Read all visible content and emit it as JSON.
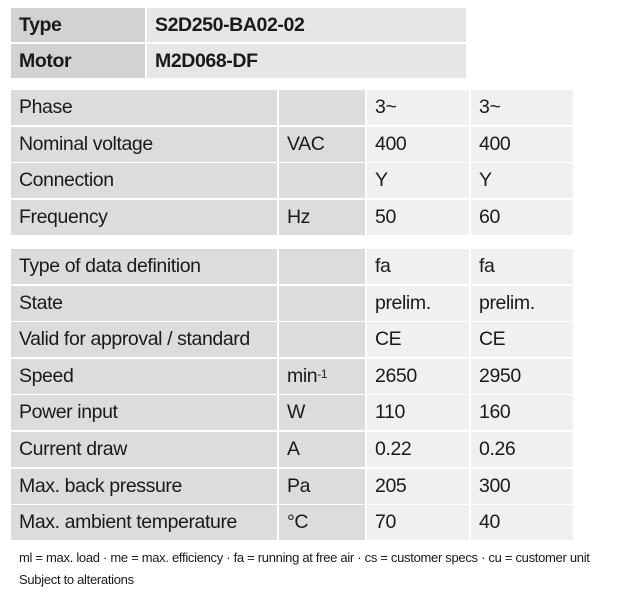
{
  "header": {
    "rows": [
      [
        "Type",
        "S2D250-BA02-02"
      ],
      [
        "Motor",
        "M2D068-DF"
      ]
    ]
  },
  "table1": {
    "rows": [
      [
        "Phase",
        null,
        "3~",
        "3~"
      ],
      [
        "Nominal voltage",
        "VAC",
        "400",
        "400"
      ],
      [
        "Connection",
        null,
        "Y",
        "Y"
      ],
      [
        "Frequency",
        "Hz",
        "50",
        "60"
      ]
    ]
  },
  "table2": {
    "rows": [
      [
        "Type of data definition",
        null,
        "fa",
        "fa"
      ],
      [
        "State",
        null,
        "prelim.",
        "prelim."
      ],
      [
        "Valid for approval / standard",
        null,
        "CE",
        "CE"
      ],
      [
        "Speed",
        {
          "text": "min",
          "sup": "-1"
        },
        "2650",
        "2950"
      ],
      [
        "Power input",
        "W",
        "110",
        "160"
      ],
      [
        "Current draw",
        "A",
        "0.22",
        "0.26"
      ],
      [
        "Max. back pressure",
        "Pa",
        "205",
        "300"
      ],
      [
        "Max. ambient temperature",
        "°C",
        "70",
        "40"
      ]
    ]
  },
  "footnote": [
    "ml = max. load · me = max. efficiency · fa = running at free air · cs = customer specs · cu = customer unit",
    "Subject to alterations"
  ]
}
